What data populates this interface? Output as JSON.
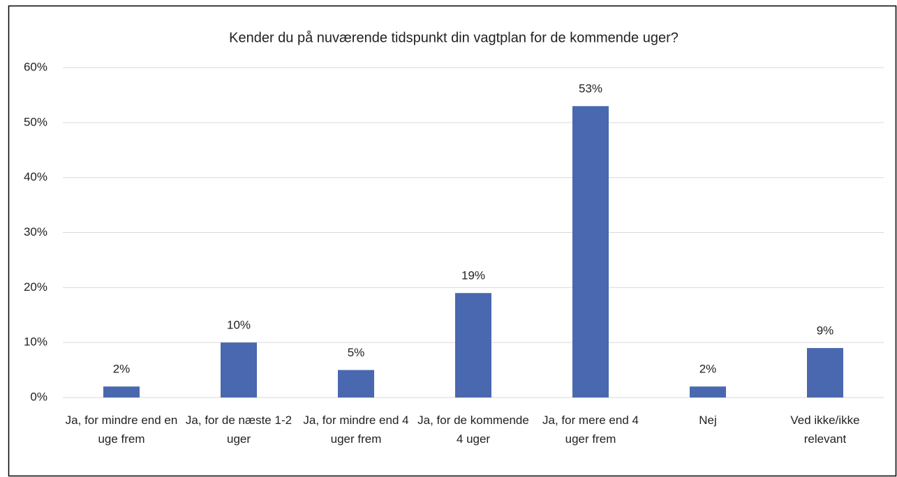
{
  "chart_data": {
    "type": "bar",
    "title": "Kender du på nuværende tidspunkt din vagtplan for de kommende uger?",
    "categories": [
      "Ja, for mindre end en uge frem",
      "Ja, for de næste 1-2 uger",
      "Ja, for mindre end 4 uger frem",
      "Ja, for de kommende 4 uger",
      "Ja, for mere end 4 uger frem",
      "Nej",
      "Ved ikke/ikke relevant"
    ],
    "values": [
      2,
      10,
      5,
      19,
      53,
      2,
      9
    ],
    "value_labels": [
      "2%",
      "10%",
      "5%",
      "19%",
      "53%",
      "2%",
      "9%"
    ],
    "color": "#4a68b0",
    "ylim": [
      0,
      60
    ],
    "yticks": [
      {
        "value": 0,
        "label": "0%"
      },
      {
        "value": 10,
        "label": "10%"
      },
      {
        "value": 20,
        "label": "20%"
      },
      {
        "value": 30,
        "label": "30%"
      },
      {
        "value": 40,
        "label": "40%"
      },
      {
        "value": 50,
        "label": "50%"
      },
      {
        "value": 60,
        "label": "60%"
      }
    ],
    "grid": true
  }
}
